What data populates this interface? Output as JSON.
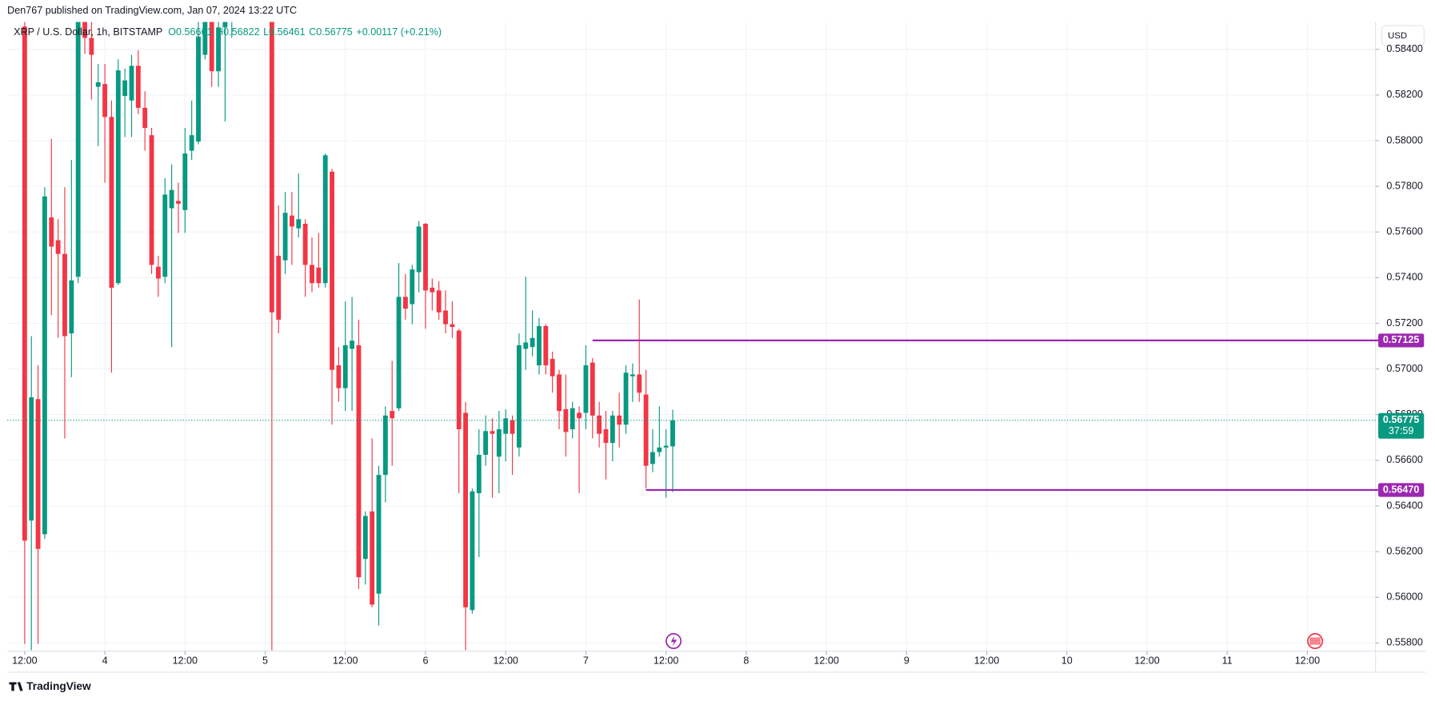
{
  "attribution": "Den767 published on TradingView.com, Jan 07, 2024 13:22 UTC",
  "brand": "TradingView",
  "currency_button": "USD",
  "chart_data": {
    "type": "candlestick",
    "legend_text": "XRP / U.S. Dollar, 1h, BITSTAMP",
    "ohlc_text": [
      "O0.56661",
      "H0.56822",
      "L0.56461",
      "C0.56775",
      "+0.00117 (+0.21%)"
    ],
    "up_color": "#089981",
    "down_color": "#f23645",
    "level_color": "#9c27b0",
    "grid": true,
    "ylim": [
      0.55764,
      0.5852
    ],
    "yticks": [
      {
        "value": 0.558,
        "label": "0.55800"
      },
      {
        "value": 0.56,
        "label": "0.56000"
      },
      {
        "value": 0.562,
        "label": "0.56200"
      },
      {
        "value": 0.564,
        "label": "0.56400"
      },
      {
        "value": 0.566,
        "label": "0.56600"
      },
      {
        "value": 0.568,
        "label": "0.56800"
      },
      {
        "value": 0.57,
        "label": "0.57000"
      },
      {
        "value": 0.572,
        "label": "0.57200"
      },
      {
        "value": 0.574,
        "label": "0.57400"
      },
      {
        "value": 0.576,
        "label": "0.57600"
      },
      {
        "value": 0.578,
        "label": "0.57800"
      },
      {
        "value": 0.58,
        "label": "0.58000"
      },
      {
        "value": 0.582,
        "label": "0.58200"
      },
      {
        "value": 0.584,
        "label": "0.58400"
      }
    ],
    "xlim": [
      -2.6,
      202.2
    ],
    "xticks": [
      {
        "value": 0,
        "label": "12:00"
      },
      {
        "value": 12,
        "label": "4"
      },
      {
        "value": 24,
        "label": "12:00"
      },
      {
        "value": 36,
        "label": "5"
      },
      {
        "value": 48,
        "label": "12:00"
      },
      {
        "value": 60,
        "label": "6"
      },
      {
        "value": 72,
        "label": "12:00"
      },
      {
        "value": 84,
        "label": "7"
      },
      {
        "value": 96,
        "label": "12:00"
      },
      {
        "value": 108,
        "label": "8"
      },
      {
        "value": 120,
        "label": "12:00"
      },
      {
        "value": 132,
        "label": "9"
      },
      {
        "value": 144,
        "label": "12:00"
      },
      {
        "value": 156,
        "label": "10"
      },
      {
        "value": 168,
        "label": "12:00"
      },
      {
        "value": 180,
        "label": "11"
      },
      {
        "value": 192,
        "label": "12:00"
      }
    ],
    "open": [
      0.585,
      0.56336,
      0.56868,
      0.56276,
      0.57664,
      0.57564,
      0.57504,
      0.57156,
      0.57404,
      0.586,
      0.5845,
      0.58236,
      0.58248,
      0.58104,
      0.57376,
      0.58196,
      0.58176,
      0.58328,
      0.58144,
      0.58024,
      0.57448,
      0.57404,
      0.57704,
      0.57736,
      0.57696,
      0.57956,
      0.57996,
      0.58376,
      0.5856,
      0.58304,
      0.58496,
      0.5856,
      0.587,
      0.588,
      0.587,
      0.5865,
      0.5875,
      0.587,
      0.57496,
      0.57476,
      0.57672,
      0.57616,
      0.57636,
      0.57456,
      0.57444,
      0.57376,
      0.57864,
      0.57016,
      0.56916,
      0.57088,
      0.57104,
      0.56168,
      0.56376,
      0.56016,
      0.56536,
      0.56816,
      0.56828,
      0.57316,
      0.57284,
      0.57424,
      0.57636,
      0.57356,
      0.57344,
      0.57256,
      0.57196,
      0.57168,
      0.56808,
      0.55944,
      0.56456,
      0.56624,
      0.56728,
      0.56616,
      0.56716,
      0.56776,
      0.56656,
      0.57088,
      0.57096,
      0.57016,
      0.57188,
      0.57044,
      0.56976,
      0.56824,
      0.56736,
      0.56808,
      0.56808,
      0.57028,
      0.56796,
      0.56736,
      0.56676,
      0.56796,
      0.56756,
      0.56968,
      0.56976,
      0.56888,
      0.56584,
      0.56636,
      0.56656,
      0.56661
    ],
    "high": [
      0.5856,
      0.57144,
      0.57016,
      0.57796,
      0.58008,
      0.57656,
      0.57796,
      0.57916,
      0.586,
      0.587,
      0.5856,
      0.58336,
      0.58336,
      0.58176,
      0.58356,
      0.58316,
      0.58376,
      0.58396,
      0.58216,
      0.58056,
      0.57496,
      0.57836,
      0.57896,
      0.57816,
      0.58056,
      0.58176,
      0.5852,
      0.5865,
      0.5865,
      0.5865,
      0.5865,
      0.588,
      0.589,
      0.5895,
      0.5885,
      0.588,
      0.5885,
      0.588,
      0.57716,
      0.57776,
      0.57776,
      0.57856,
      0.57656,
      0.57576,
      0.57596,
      0.57944,
      0.57876,
      0.57096,
      0.57296,
      0.57316,
      0.57216,
      0.56376,
      0.56696,
      0.56576,
      0.56836,
      0.57036,
      0.57464,
      0.57416,
      0.57456,
      0.57648,
      0.5764,
      0.57396,
      0.57384,
      0.57344,
      0.57296,
      0.57176,
      0.56856,
      0.56476,
      0.56736,
      0.56796,
      0.56784,
      0.56816,
      0.56824,
      0.56796,
      0.57156,
      0.57404,
      0.57256,
      0.57224,
      0.57196,
      0.57076,
      0.56996,
      0.56976,
      0.56856,
      0.56836,
      0.57104,
      0.57048,
      0.56856,
      0.56816,
      0.56816,
      0.56896,
      0.57016,
      0.57024,
      0.57304,
      0.56996,
      0.56736,
      0.56836,
      0.56736,
      0.56822
    ],
    "low": [
      0.55796,
      0.55768,
      0.55796,
      0.56256,
      0.57236,
      0.57136,
      0.56696,
      0.56964,
      0.57376,
      0.5838,
      0.5818,
      0.57976,
      0.57816,
      0.56984,
      0.57368,
      0.58016,
      0.58016,
      0.58116,
      0.57956,
      0.57416,
      0.57316,
      0.57376,
      0.57096,
      0.57596,
      0.57596,
      0.57916,
      0.57984,
      0.58356,
      0.58236,
      0.58236,
      0.58084,
      0.5845,
      0.586,
      0.5865,
      0.5855,
      0.5855,
      0.586,
      0.55768,
      0.57156,
      0.57416,
      0.57456,
      0.57576,
      0.57316,
      0.57336,
      0.57356,
      0.57356,
      0.56756,
      0.56856,
      0.56816,
      0.56816,
      0.56036,
      0.56056,
      0.55956,
      0.55876,
      0.56416,
      0.56576,
      0.56816,
      0.57216,
      0.57196,
      0.57336,
      0.57176,
      0.57256,
      0.57216,
      0.57156,
      0.57136,
      0.56456,
      0.55768,
      0.55928,
      0.56176,
      0.56576,
      0.56436,
      0.56456,
      0.56596,
      0.56536,
      0.56616,
      0.56996,
      0.57056,
      0.56976,
      0.56976,
      0.56896,
      0.56736,
      0.56616,
      0.56696,
      0.56456,
      0.56736,
      0.56696,
      0.56656,
      0.56516,
      0.56596,
      0.56656,
      0.56716,
      0.56856,
      0.56856,
      0.56476,
      0.56548,
      0.56616,
      0.56436,
      0.56461
    ],
    "close": [
      0.56248,
      0.56876,
      0.56212,
      0.57756,
      0.57536,
      0.57504,
      0.57144,
      0.57388,
      0.5856,
      0.5845,
      0.58376,
      0.58256,
      0.58104,
      0.57356,
      0.58308,
      0.58264,
      0.58328,
      0.58144,
      0.58056,
      0.57456,
      0.57396,
      0.57764,
      0.57784,
      0.57724,
      0.57944,
      0.58024,
      0.58456,
      0.5856,
      0.58304,
      0.58496,
      0.5856,
      0.587,
      0.588,
      0.587,
      0.5865,
      0.5875,
      0.587,
      0.57248,
      0.57216,
      0.57684,
      0.57624,
      0.57656,
      0.57456,
      0.57376,
      0.57376,
      0.57936,
      0.56996,
      0.56916,
      0.57104,
      0.57124,
      0.56088,
      0.56356,
      0.55968,
      0.56536,
      0.56796,
      0.56784,
      0.57316,
      0.57264,
      0.57436,
      0.57624,
      0.57344,
      0.57336,
      0.57248,
      0.57196,
      0.57184,
      0.56736,
      0.55956,
      0.56464,
      0.56624,
      0.56728,
      0.56716,
      0.56736,
      0.56784,
      0.56716,
      0.57104,
      0.57116,
      0.57136,
      0.57188,
      0.57016,
      0.56968,
      0.56816,
      0.56724,
      0.56828,
      0.56784,
      0.57016,
      0.56796,
      0.56716,
      0.56676,
      0.56796,
      0.56756,
      0.56984,
      0.56976,
      0.56896,
      0.56576,
      0.56636,
      0.56656,
      0.56664,
      0.56775
    ],
    "levels": [
      {
        "value": 0.57125,
        "label": "0.57125",
        "from": 85
      },
      {
        "value": 0.5647,
        "label": "0.56470",
        "from": 93
      }
    ],
    "price_line": {
      "value": 0.56775,
      "label": "0.56775",
      "countdown": "37:59"
    }
  }
}
